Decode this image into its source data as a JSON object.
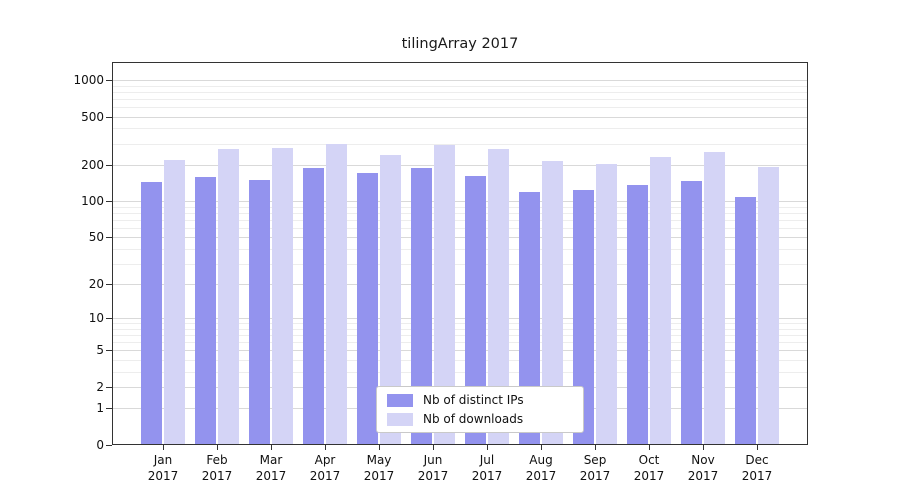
{
  "chart_data": {
    "type": "bar",
    "title": "tilingArray 2017",
    "categories": [
      "Jan",
      "Feb",
      "Mar",
      "Apr",
      "May",
      "Jun",
      "Jul",
      "Aug",
      "Sep",
      "Oct",
      "Nov",
      "Dec"
    ],
    "year_label": "2017",
    "series": [
      {
        "name": "Nb of distinct IPs",
        "color": "#9393ee",
        "values": [
          145,
          160,
          150,
          190,
          172,
          188,
          162,
          119,
          124,
          136,
          147,
          108
        ]
      },
      {
        "name": "Nb of downloads",
        "color": "#d4d4f6",
        "values": [
          218,
          270,
          278,
          300,
          240,
          290,
          270,
          215,
          203,
          232,
          255,
          192
        ]
      }
    ],
    "yticks": [
      0,
      1,
      2,
      5,
      10,
      20,
      50,
      100,
      200,
      500,
      1000
    ],
    "minor_yticks": [
      3,
      4,
      6,
      7,
      8,
      9,
      30,
      40,
      60,
      70,
      80,
      90,
      300,
      400,
      600,
      700,
      800,
      900
    ],
    "scale": "log10(v+1)",
    "ylim": [
      0,
      1000
    ],
    "grid": "horizontal",
    "legend_position": "bottom-center",
    "grid_major_color": "#d9d9d9",
    "grid_minor_color": "#ededed"
  }
}
